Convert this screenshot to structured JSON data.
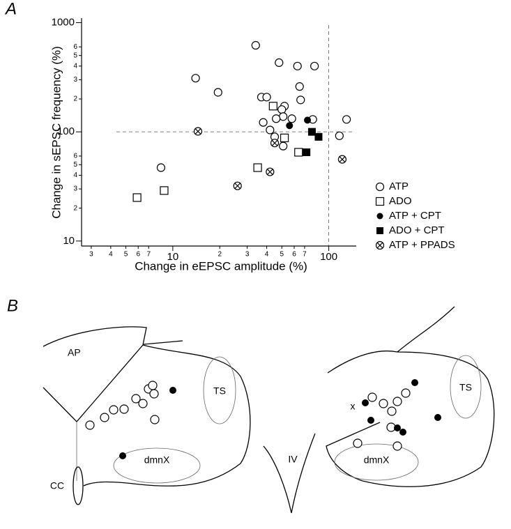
{
  "chart_data": {
    "type": "scatter",
    "panel_label": "A",
    "x_label": "Change in eEPSC amplitude (%)",
    "y_label": "Change in sEPSC frequency (%)",
    "log_x": true,
    "log_y": true,
    "xlim": [
      2.6,
      150
    ],
    "ylim": [
      9,
      1100
    ],
    "xticks": [
      {
        "value": 3,
        "label": "3"
      },
      {
        "value": 4,
        "label": "4"
      },
      {
        "value": 5,
        "label": "5"
      },
      {
        "value": 6,
        "label": "6"
      },
      {
        "value": 7,
        "label": "7"
      },
      10,
      {
        "value": 20,
        "label": "2"
      },
      {
        "value": 30,
        "label": "3"
      },
      {
        "value": 40,
        "label": "4"
      },
      {
        "value": 50,
        "label": "5"
      },
      {
        "value": 60,
        "label": "6"
      },
      {
        "value": 70,
        "label": "7"
      },
      100
    ],
    "yticks": [
      10,
      {
        "value": 20,
        "label": "2"
      },
      {
        "value": 30,
        "label": "3"
      },
      {
        "value": 40,
        "label": "4"
      },
      {
        "value": 50,
        "label": "5"
      },
      {
        "value": 60,
        "label": "6"
      },
      100,
      {
        "value": 200,
        "label": "2"
      },
      {
        "value": 300,
        "label": "3"
      },
      {
        "value": 400,
        "label": "4"
      },
      {
        "value": 500,
        "label": "5"
      },
      {
        "value": 600,
        "label": "6"
      },
      1000
    ],
    "reference_lines": {
      "x": 100,
      "y": 100
    },
    "series": [
      {
        "name": "ATP",
        "marker": "open-circle",
        "color": "#000000",
        "x": [
          34,
          14,
          19.5,
          48,
          63,
          81,
          37,
          40,
          52,
          50,
          65,
          66,
          58,
          51,
          46,
          79,
          130,
          38,
          42,
          45,
          51,
          117,
          8.4
        ],
        "y": [
          620,
          310,
          230,
          430,
          400,
          400,
          208,
          208,
          172,
          160,
          260,
          196,
          132,
          138,
          132,
          130,
          130,
          122,
          104,
          90,
          74,
          92,
          47
        ]
      },
      {
        "name": "ADO",
        "marker": "open-square",
        "color": "#000000",
        "x": [
          44,
          52,
          64,
          35,
          8.8,
          5.9
        ],
        "y": [
          172,
          88,
          65,
          47,
          29,
          25
        ]
      },
      {
        "name": "ATP + CPT",
        "marker": "filled-circle",
        "color": "#000000",
        "x": [
          56,
          73
        ],
        "y": [
          114,
          128
        ]
      },
      {
        "name": "ADO + CPT",
        "marker": "filled-square",
        "color": "#000000",
        "x": [
          78,
          72,
          86
        ],
        "y": [
          100,
          65,
          90
        ]
      },
      {
        "name": "ATP + PPADS",
        "marker": "crossed-circle",
        "color": "#000000",
        "x": [
          14.5,
          45,
          42,
          26,
          122
        ],
        "y": [
          101,
          79,
          43,
          32,
          56
        ]
      }
    ]
  },
  "panel_b": {
    "label": "B",
    "left": {
      "ap": "AP",
      "ts": "TS",
      "dmnx": "dmnX",
      "cc": "CC"
    },
    "right": {
      "iv": "IV",
      "ts": "TS",
      "dmnx": "dmnX",
      "x": "x"
    }
  }
}
